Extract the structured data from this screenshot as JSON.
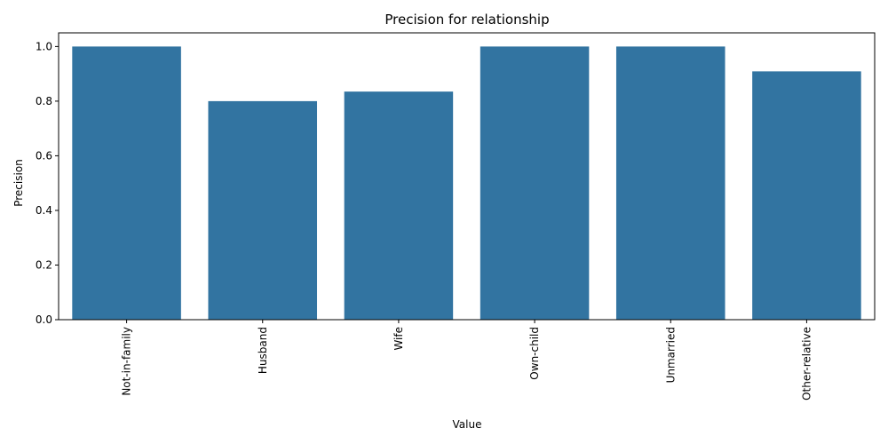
{
  "chart_data": {
    "type": "bar",
    "title": "Precision for relationship",
    "xlabel": "Value",
    "ylabel": "Precision",
    "categories": [
      "Not-in-family",
      "Husband",
      "Wife",
      "Own-child",
      "Unmarried",
      "Other-relative"
    ],
    "values": [
      1.0,
      0.8,
      0.835,
      1.0,
      1.0,
      0.909
    ],
    "ylim": [
      0,
      1.05
    ],
    "yticks": [
      "0.0",
      "0.2",
      "0.4",
      "0.6",
      "0.8",
      "1.0"
    ],
    "grid": false,
    "bar_color": "#3274a1"
  }
}
